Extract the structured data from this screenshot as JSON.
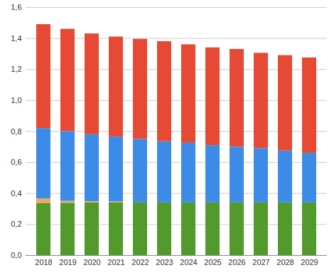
{
  "chart_data": {
    "type": "bar",
    "stacked": true,
    "grid": true,
    "categories": [
      "2018",
      "2019",
      "2020",
      "2021",
      "2022",
      "2023",
      "2024",
      "2025",
      "2026",
      "2027",
      "2028",
      "2029"
    ],
    "series": [
      {
        "color": "#519a2b",
        "values": [
          0.335,
          0.338,
          0.34,
          0.34,
          0.34,
          0.34,
          0.34,
          0.34,
          0.34,
          0.34,
          0.34,
          0.34
        ]
      },
      {
        "color": "#f0a860",
        "values": [
          0.03,
          0.012,
          0.008,
          0.006,
          0,
          0,
          0,
          0,
          0,
          0,
          0,
          0
        ]
      },
      {
        "color": "#3c8ce7",
        "values": [
          0.455,
          0.45,
          0.432,
          0.419,
          0.41,
          0.395,
          0.385,
          0.37,
          0.36,
          0.35,
          0.335,
          0.32
        ]
      },
      {
        "color": "#e64a35",
        "values": [
          0.67,
          0.66,
          0.65,
          0.645,
          0.645,
          0.645,
          0.635,
          0.63,
          0.63,
          0.615,
          0.615,
          0.615
        ]
      }
    ],
    "ylim": [
      0,
      1.6
    ],
    "yticks": [
      {
        "value": 0,
        "label": "0,0"
      },
      {
        "value": 0.2,
        "label": "0,2"
      },
      {
        "value": 0.4,
        "label": "0,4"
      },
      {
        "value": 0.6,
        "label": "0,6"
      },
      {
        "value": 0.8,
        "label": "0,8"
      },
      {
        "value": 1.0,
        "label": "1,0"
      },
      {
        "value": 1.2,
        "label": "1,2"
      },
      {
        "value": 1.4,
        "label": "1,4"
      },
      {
        "value": 1.6,
        "label": "1,6"
      }
    ]
  }
}
